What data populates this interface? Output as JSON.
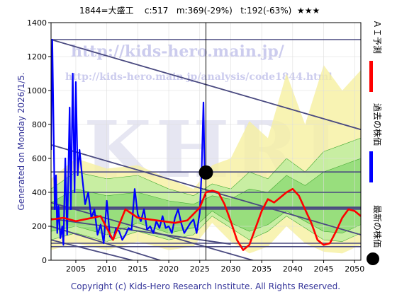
{
  "chart_data": {
    "type": "line",
    "title": "1844=大盛工    c:517   m:369(-29%)   t:192(-63%)  ★★★",
    "side_text": "Generated on Monday 2026/1/5.",
    "right_legend": [
      "ＡＩ予測",
      "過去の株価",
      "最新の株価"
    ],
    "footer": "Copyright (c) Kids-Hero Research Institute. All Rights Reserved.",
    "watermarks": [
      "http://kids-hero.main.jp/",
      "http://kids-hero.main.jp/analysis/code1844.html",
      "KHRI"
    ],
    "x_range": [
      2001,
      2051
    ],
    "y_range": [
      0,
      1400
    ],
    "x_ticks": [
      2005,
      2010,
      2015,
      2020,
      2025,
      2030,
      2035,
      2040,
      2045,
      2050
    ],
    "y_ticks": [
      0,
      200,
      400,
      600,
      800,
      1000,
      1200,
      1400
    ],
    "latest_point": {
      "x": 2026.0,
      "y": 517
    },
    "horizontal_lines": [
      1300,
      520,
      400,
      310,
      300,
      100,
      80
    ],
    "trend_lines": [
      {
        "x": [
          2001,
          2051
        ],
        "y": [
          1300,
          770
        ]
      },
      {
        "x": [
          2001,
          2051
        ],
        "y": [
          680,
          150
        ]
      },
      {
        "x": [
          2001,
          2045
        ],
        "y": [
          340,
          -120
        ]
      },
      {
        "x": [
          2001,
          2030
        ],
        "y": [
          200,
          -130
        ]
      },
      {
        "x": [
          2001,
          2025
        ],
        "y": [
          120,
          -100
        ]
      },
      {
        "x": [
          2001,
          2030
        ],
        "y": [
          245,
          95
        ]
      }
    ],
    "series": [
      {
        "name": "過去の株価",
        "color": "#0000ff",
        "x": [
          2001.0,
          2001.2,
          2001.4,
          2001.6,
          2001.8,
          2002.0,
          2002.2,
          2002.5,
          2002.8,
          2003.0,
          2003.3,
          2003.6,
          2004.0,
          2004.2,
          2004.5,
          2004.8,
          2005.0,
          2005.3,
          2005.6,
          2006.0,
          2006.5,
          2007.0,
          2007.5,
          2008.0,
          2008.5,
          2009.0,
          2009.5,
          2010.0,
          2010.5,
          2011.0,
          2011.5,
          2012.0,
          2012.5,
          2013.0,
          2013.5,
          2014.0,
          2014.5,
          2015.0,
          2015.5,
          2016.0,
          2016.5,
          2017.0,
          2017.5,
          2018.0,
          2018.5,
          2019.0,
          2019.5,
          2020.0,
          2020.5,
          2021.0,
          2021.5,
          2022.0,
          2022.5,
          2023.0,
          2023.5,
          2024.0,
          2024.5,
          2025.0,
          2025.3,
          2025.6,
          2025.8,
          2026.0
        ],
        "y": [
          650,
          1300,
          800,
          300,
          500,
          160,
          320,
          130,
          200,
          90,
          600,
          150,
          900,
          300,
          1100,
          400,
          1050,
          500,
          650,
          500,
          330,
          400,
          250,
          300,
          150,
          210,
          100,
          350,
          140,
          120,
          190,
          170,
          120,
          150,
          190,
          180,
          420,
          270,
          230,
          300,
          180,
          200,
          160,
          230,
          190,
          260,
          190,
          200,
          160,
          250,
          300,
          220,
          160,
          190,
          220,
          240,
          160,
          280,
          520,
          930,
          480,
          517
        ]
      },
      {
        "name": "ＡＩ予測",
        "color": "#ff0000",
        "x": [
          2001,
          2003,
          2005,
          2007,
          2009,
          2011,
          2013,
          2015,
          2017,
          2019,
          2021,
          2023,
          2025,
          2026,
          2027,
          2028,
          2029,
          2030,
          2031,
          2032,
          2033,
          2034,
          2035,
          2036,
          2037,
          2038,
          2039,
          2040,
          2041,
          2042,
          2043,
          2044,
          2045,
          2046,
          2047,
          2048,
          2049,
          2050,
          2051
        ],
        "y": [
          240,
          250,
          230,
          245,
          260,
          120,
          300,
          250,
          240,
          230,
          220,
          235,
          310,
          400,
          410,
          400,
          330,
          230,
          120,
          60,
          90,
          190,
          290,
          360,
          340,
          370,
          400,
          420,
          380,
          300,
          220,
          120,
          90,
          100,
          170,
          250,
          300,
          290,
          260
        ]
      }
    ],
    "green_bands": [
      {
        "x": [
          2001,
          2005,
          2010,
          2015,
          2020,
          2024,
          2027,
          2030,
          2033,
          2036,
          2039,
          2042,
          2045,
          2048,
          2051
        ],
        "upper": [
          420,
          520,
          480,
          500,
          420,
          380,
          450,
          420,
          520,
          480,
          600,
          520,
          640,
          680,
          720
        ],
        "lower": [
          120,
          160,
          110,
          170,
          120,
          150,
          260,
          190,
          120,
          170,
          260,
          190,
          120,
          110,
          160
        ]
      },
      {
        "x": [
          2001,
          2005,
          2010,
          2015,
          2020,
          2024,
          2027,
          2030,
          2033,
          2036,
          2039,
          2042,
          2045,
          2048,
          2051
        ],
        "upper": [
          340,
          420,
          380,
          400,
          350,
          330,
          380,
          360,
          420,
          400,
          500,
          440,
          520,
          560,
          600
        ],
        "lower": [
          170,
          200,
          150,
          220,
          160,
          190,
          290,
          220,
          170,
          210,
          290,
          230,
          170,
          160,
          210
        ]
      }
    ],
    "yellow_bands": [
      {
        "x": [
          2001,
          2005,
          2010,
          2015,
          2020,
          2024,
          2027,
          2030,
          2033,
          2036,
          2039,
          2042,
          2045,
          2048,
          2051
        ],
        "upper": [
          480,
          600,
          540,
          560,
          480,
          420,
          560,
          600,
          820,
          720,
          1100,
          800,
          1150,
          1000,
          1120
        ],
        "lower": [
          60,
          100,
          60,
          110,
          60,
          80,
          220,
          110,
          40,
          80,
          200,
          100,
          50,
          40,
          90
        ]
      }
    ]
  }
}
